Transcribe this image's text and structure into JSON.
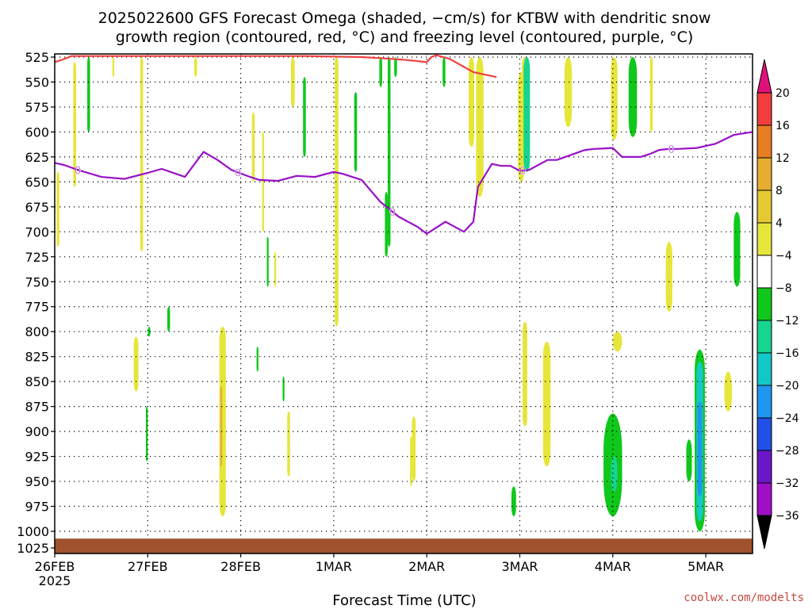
{
  "title": {
    "line1": "2025022600 GFS Forecast Omega (shaded, −cm/s) for KTBW with dendritic snow",
    "line2": "growth region (contoured, red, °C) and freezing level (contoured, purple, °C)"
  },
  "credit": "coolwx.com/modelts",
  "chart_data": {
    "type": "heatmap",
    "xlabel": "Forecast Time (UTC)",
    "ylabel": "",
    "x_ticks": [
      "26FEB",
      "27FEB",
      "28FEB",
      "1MAR",
      "2MAR",
      "3MAR",
      "4MAR",
      "5MAR"
    ],
    "x_tick_year": "2025",
    "x_range_days": [
      0,
      7.5
    ],
    "y_ticks": [
      525,
      550,
      575,
      600,
      625,
      650,
      675,
      700,
      725,
      750,
      775,
      800,
      825,
      850,
      875,
      900,
      925,
      950,
      975,
      1000,
      1025
    ],
    "y_range_hpa": [
      1025,
      525
    ],
    "grid": true,
    "colorbar": {
      "labels": [
        "20",
        "16",
        "12",
        "8",
        "4",
        "−4",
        "−8",
        "−12",
        "−16",
        "−20",
        "−24",
        "−28",
        "−32",
        "−36"
      ],
      "colors": [
        "#f23d3d",
        "#e87d22",
        "#e6ad30",
        "#e5c933",
        "#e6e63a",
        "#ffffff",
        "#0fc81b",
        "#17d48f",
        "#14c8c8",
        "#1f96f0",
        "#2050e6",
        "#6a17c8",
        "#a00fc8",
        "#a0a0a0"
      ],
      "top_arrow_color": "#e0107a",
      "bottom_arrow_color": "#000000"
    },
    "freezing_level_color": "#9a0fc8",
    "freezing_level_label": "0",
    "dgz_color": "#f04040",
    "ground_color": "#a0522d",
    "freezing_level": {
      "t_days": [
        0,
        0.1,
        0.25,
        0.5,
        0.75,
        1.0,
        1.15,
        1.4,
        1.6,
        1.75,
        1.9,
        2.1,
        2.2,
        2.4,
        2.6,
        2.8,
        3.0,
        3.1,
        3.3,
        3.5,
        3.7,
        3.9,
        4.0,
        4.2,
        4.4,
        4.5,
        4.55,
        4.7,
        4.8,
        4.9,
        5.0,
        5.1,
        5.3,
        5.4,
        5.7,
        5.8,
        6.0,
        6.1,
        6.3,
        6.4,
        6.5,
        6.6,
        6.7,
        6.9,
        7.1,
        7.3,
        7.5
      ],
      "p_hpa": [
        631,
        633,
        638,
        645,
        647,
        641,
        637,
        645,
        620,
        628,
        638,
        645,
        648,
        649,
        644,
        645,
        640,
        642,
        648,
        670,
        685,
        695,
        702,
        690,
        700,
        690,
        655,
        632,
        634,
        634,
        639,
        638,
        628,
        628,
        618,
        617,
        616,
        625,
        625,
        622,
        618,
        617,
        617,
        616,
        612,
        603,
        600
      ]
    },
    "dgz_contour": {
      "t_days": [
        0,
        0.1,
        0.18,
        2.7,
        3.3,
        3.5,
        3.8,
        4.0,
        4.05,
        4.1,
        4.25,
        4.5,
        4.75
      ],
      "p_hpa": [
        530,
        527,
        524,
        524,
        525,
        526,
        528,
        530,
        525,
        523,
        527,
        540,
        545
      ]
    },
    "omega_shading_cm_s": [
      {
        "t_days": [
          0.02,
          0.05
        ],
        "p_hpa": [
          640,
          715
        ],
        "value": 5
      },
      {
        "t_days": [
          0.2,
          0.23
        ],
        "p_hpa": [
          530,
          655
        ],
        "value": 5
      },
      {
        "t_days": [
          0.35,
          0.38
        ],
        "p_hpa": [
          525,
          600
        ],
        "value": -6
      },
      {
        "t_days": [
          0.92,
          0.95
        ],
        "p_hpa": [
          525,
          720
        ],
        "value": 5
      },
      {
        "t_days": [
          0.85,
          0.9
        ],
        "p_hpa": [
          805,
          860
        ],
        "value": 5
      },
      {
        "t_days": [
          0.98,
          1.0
        ],
        "p_hpa": [
          875,
          930
        ],
        "value": -6
      },
      {
        "t_days": [
          1.5,
          1.53
        ],
        "p_hpa": [
          525,
          545
        ],
        "value": 5
      },
      {
        "t_days": [
          1.77,
          1.84
        ],
        "p_hpa": [
          795,
          985
        ],
        "value": 6
      },
      {
        "t_days": [
          2.12,
          2.15
        ],
        "p_hpa": [
          580,
          650
        ],
        "value": 5
      },
      {
        "t_days": [
          2.23,
          2.25
        ],
        "p_hpa": [
          600,
          700
        ],
        "value": 5
      },
      {
        "t_days": [
          2.28,
          2.3
        ],
        "p_hpa": [
          705,
          755
        ],
        "value": -6
      },
      {
        "t_days": [
          2.36,
          2.38
        ],
        "p_hpa": [
          720,
          755
        ],
        "value": 5
      },
      {
        "t_days": [
          2.54,
          2.58
        ],
        "p_hpa": [
          525,
          575
        ],
        "value": 5
      },
      {
        "t_days": [
          2.67,
          2.7
        ],
        "p_hpa": [
          545,
          625
        ],
        "value": -6
      },
      {
        "t_days": [
          3.01,
          3.05
        ],
        "p_hpa": [
          525,
          795
        ],
        "value": 5
      },
      {
        "t_days": [
          3.58,
          3.61
        ],
        "p_hpa": [
          525,
          715
        ],
        "value": -6
      },
      {
        "t_days": [
          3.84,
          3.88
        ],
        "p_hpa": [
          885,
          950
        ],
        "value": 5
      },
      {
        "t_days": [
          3.65,
          3.68
        ],
        "p_hpa": [
          525,
          545
        ],
        "value": -6
      },
      {
        "t_days": [
          4.17,
          4.2
        ],
        "p_hpa": [
          525,
          555
        ],
        "value": -6
      },
      {
        "t_days": [
          4.45,
          4.51
        ],
        "p_hpa": [
          525,
          615
        ],
        "value": 5
      },
      {
        "t_days": [
          4.53,
          4.61
        ],
        "p_hpa": [
          525,
          665
        ],
        "value": 5
      },
      {
        "t_days": [
          5.02,
          5.08
        ],
        "p_hpa": [
          525,
          560
        ],
        "value": 5
      },
      {
        "t_days": [
          4.98,
          5.05
        ],
        "p_hpa": [
          540,
          650
        ],
        "value": 5
      },
      {
        "t_days": [
          5.04,
          5.11
        ],
        "p_hpa": [
          525,
          640
        ],
        "value": -10
      },
      {
        "t_days": [
          5.03,
          5.08
        ],
        "p_hpa": [
          790,
          895
        ],
        "value": 5
      },
      {
        "t_days": [
          5.25,
          5.33
        ],
        "p_hpa": [
          810,
          935
        ],
        "value": 5
      },
      {
        "t_days": [
          5.48,
          5.56
        ],
        "p_hpa": [
          525,
          595
        ],
        "value": 5
      },
      {
        "t_days": [
          5.98,
          6.05
        ],
        "p_hpa": [
          525,
          608
        ],
        "value": 5
      },
      {
        "t_days": [
          6.17,
          6.26
        ],
        "p_hpa": [
          525,
          605
        ],
        "value": -6
      },
      {
        "t_days": [
          6.4,
          6.43
        ],
        "p_hpa": [
          525,
          600
        ],
        "value": 5
      },
      {
        "t_days": [
          6.0,
          6.1
        ],
        "p_hpa": [
          800,
          820
        ],
        "value": 5
      },
      {
        "t_days": [
          6.57,
          6.64
        ],
        "p_hpa": [
          710,
          780
        ],
        "value": 5
      },
      {
        "t_days": [
          7.3,
          7.37
        ],
        "p_hpa": [
          680,
          755
        ],
        "value": -6
      },
      {
        "t_days": [
          7.2,
          7.28
        ],
        "p_hpa": [
          840,
          880
        ],
        "value": 5
      },
      {
        "t_days": [
          5.9,
          6.1
        ],
        "p_hpa": [
          882,
          985
        ],
        "value": -7
      },
      {
        "t_days": [
          5.98,
          6.05
        ],
        "p_hpa": [
          925,
          960
        ],
        "value": -11
      },
      {
        "t_days": [
          6.79,
          6.85
        ],
        "p_hpa": [
          908,
          950
        ],
        "value": -7
      },
      {
        "t_days": [
          6.88,
          6.99
        ],
        "p_hpa": [
          818,
          1000
        ],
        "value": -7
      },
      {
        "t_days": [
          6.9,
          6.97
        ],
        "p_hpa": [
          830,
          990
        ],
        "value": -12
      },
      {
        "t_days": [
          6.91,
          6.96
        ],
        "p_hpa": [
          870,
          965
        ],
        "value": -17
      },
      {
        "t_days": [
          4.91,
          4.96
        ],
        "p_hpa": [
          955,
          985
        ],
        "value": -6
      },
      {
        "t_days": [
          1.21,
          1.24
        ],
        "p_hpa": [
          775,
          800
        ],
        "value": -6
      },
      {
        "t_days": [
          2.17,
          2.19
        ],
        "p_hpa": [
          815,
          840
        ],
        "value": -6
      },
      {
        "t_days": [
          2.45,
          2.47
        ],
        "p_hpa": [
          845,
          870
        ],
        "value": -6
      },
      {
        "t_days": [
          3.22,
          3.25
        ],
        "p_hpa": [
          560,
          640
        ],
        "value": -6
      },
      {
        "t_days": [
          3.55,
          3.58
        ],
        "p_hpa": [
          660,
          725
        ],
        "value": -6
      },
      {
        "t_days": [
          3.49,
          3.52
        ],
        "p_hpa": [
          525,
          555
        ],
        "value": -6
      },
      {
        "t_days": [
          1.0,
          1.03
        ],
        "p_hpa": [
          795,
          805
        ],
        "value": -6
      },
      {
        "t_days": [
          1.78,
          1.8
        ],
        "p_hpa": [
          855,
          935
        ],
        "value": 10
      },
      {
        "t_days": [
          2.5,
          2.53
        ],
        "p_hpa": [
          880,
          945
        ],
        "value": 5
      },
      {
        "t_days": [
          3.82,
          3.84
        ],
        "p_hpa": [
          905,
          955
        ],
        "value": 5
      },
      {
        "t_days": [
          0.62,
          0.64
        ],
        "p_hpa": [
          525,
          545
        ],
        "value": 5
      }
    ]
  }
}
